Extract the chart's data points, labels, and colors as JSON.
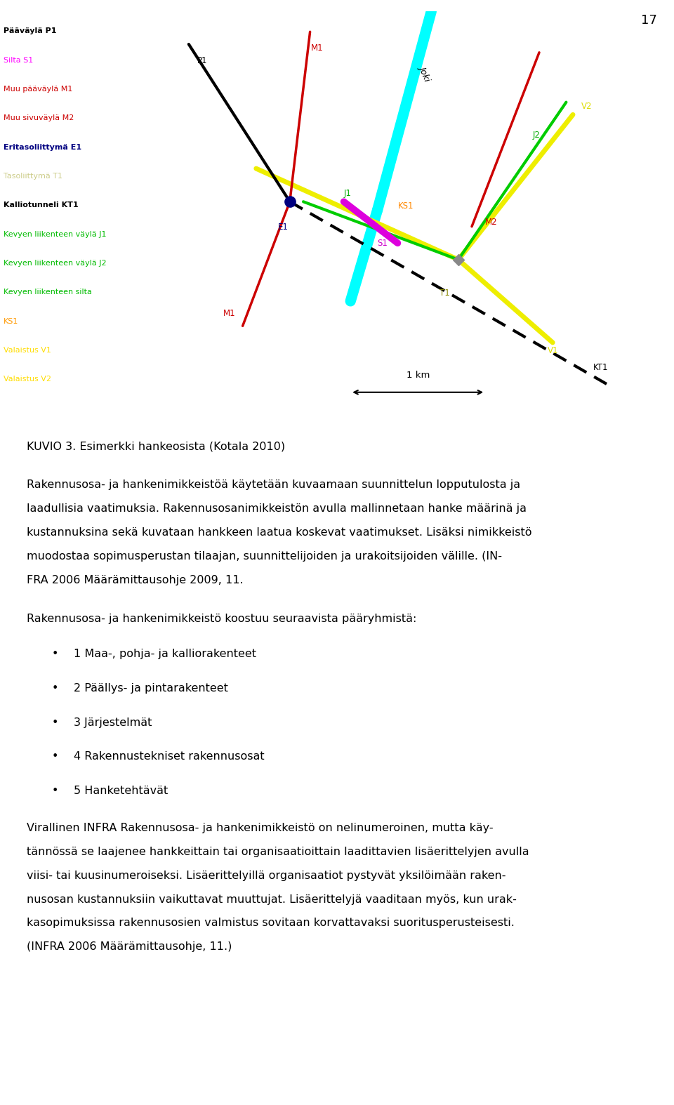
{
  "page_number": "17",
  "background_color": "#ffffff",
  "figure_caption": "KUVIO 3. Esimerkki hankeosista (Kotala 2010)",
  "legend_items": [
    {
      "label": "Pääväylä P1",
      "color": "#000000",
      "bold": true
    },
    {
      "label": "Silta S1",
      "color": "#ff00ff",
      "bold": false
    },
    {
      "label": "Muu pääväylä M1",
      "color": "#cc0000",
      "bold": false
    },
    {
      "label": "Muu sivuväylä M2",
      "color": "#cc0000",
      "bold": false
    },
    {
      "label": "Eritasoliittymä E1",
      "color": "#000080",
      "bold": true
    },
    {
      "label": "Tasoliittymä T1",
      "color": "#cccc88",
      "bold": false
    },
    {
      "label": "Kalliotunneli KT1",
      "color": "#000000",
      "bold": true
    },
    {
      "label": "Kevyen liikenteen väylä J1",
      "color": "#00bb00",
      "bold": false
    },
    {
      "label": "Kevyen liikenteen väylä J2",
      "color": "#00bb00",
      "bold": false
    },
    {
      "label": "Kevyen liikenteen silta",
      "color": "#00bb00",
      "bold": false
    },
    {
      "label": "KS1",
      "color": "#ff9900",
      "bold": false
    },
    {
      "label": "Valaistus V1",
      "color": "#ffdd00",
      "bold": false
    },
    {
      "label": "Valaistus V2",
      "color": "#ffdd00",
      "bold": false
    }
  ],
  "para1_lines": [
    "Rakennusosa- ja hankenimikkeistöä käytetään kuvaamaan suunnittelun lopputulosta ja",
    "laadullisia vaatimuksia. Rakennusosanimikkeistön avulla mallinnetaan hanke määrinä ja",
    "kustannuksina sekä kuvataan hankkeen laatua koskevat vaatimukset. Lisäksi nimikkeistö",
    "muodostaa sopimusperustan tilaajan, suunnittelijoiden ja urakoitsijoiden välille. (IN-",
    "FRA 2006 Määrämittausohje 2009, 11."
  ],
  "para2_intro": "Rakennusosa- ja hankenimikkeistö koostuu seuraavista pääryhmistä:",
  "bullet_items": [
    "1 Maa-, pohja- ja kalliorakenteet",
    "2 Päällys- ja pintarakenteet",
    "3 Järjestelmät",
    "4 Rakennustekniset rakennusosat",
    "5 Hanketehtävät"
  ],
  "para3_lines": [
    "Virallinen INFRA Rakennusosa- ja hankenimikkeistö on nelinumeroinen, mutta käy-",
    "tännössä se laajenee hankkeittain tai organisaatioittain laadittavien lisäerittelyjen avulla",
    "viisi- tai kuusinumeroiseksi. Lisäerittelyillä organisaatiot pystyvät yksilöimään raken-",
    "nusosan kustannuksiin vaikuttavat muuttujat. Lisäerittelyjä vaaditaan myös, kun urak-",
    "kasopimuksissa rakennusosien valmistus sovitaan korvattavaksi suoritusperusteisesti.",
    "(INFRA 2006 Määrämittausohje, 11.)"
  ]
}
